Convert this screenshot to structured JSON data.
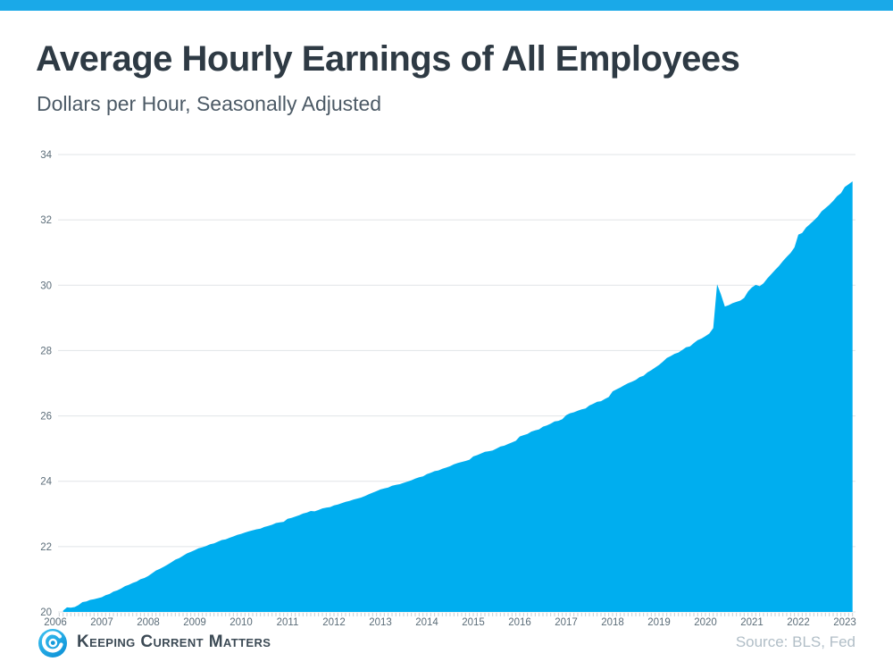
{
  "topbar": {
    "color": "#1aa9e8"
  },
  "header": {
    "title": "Average Hourly Earnings of All Employees",
    "subtitle": "Dollars per Hour, Seasonally Adjusted"
  },
  "chart_data": {
    "type": "area",
    "title": "Average Hourly Earnings of All Employees",
    "subtitle": "Dollars per Hour, Seasonally Adjusted",
    "unit": "dollars per hour",
    "frequency": "monthly",
    "start": "2006-03",
    "end": "2023-03",
    "ylim": [
      20,
      34
    ],
    "yticks": [
      20,
      22,
      24,
      26,
      28,
      30,
      32,
      34
    ],
    "xticks": [
      2006,
      2007,
      2008,
      2009,
      2010,
      2011,
      2012,
      2013,
      2014,
      2015,
      2016,
      2017,
      2018,
      2019,
      2020,
      2021,
      2022,
      2023
    ],
    "grid": "horizontal",
    "legend": "none",
    "fill_color": "#00aeef",
    "values": [
      20.04,
      20.14,
      20.13,
      20.15,
      20.21,
      20.3,
      20.32,
      20.37,
      20.39,
      20.42,
      20.45,
      20.51,
      20.55,
      20.62,
      20.66,
      20.72,
      20.79,
      20.83,
      20.89,
      20.93,
      21.0,
      21.04,
      21.1,
      21.18,
      21.27,
      21.32,
      21.38,
      21.45,
      21.52,
      21.6,
      21.65,
      21.72,
      21.79,
      21.84,
      21.89,
      21.95,
      21.98,
      22.02,
      22.07,
      22.1,
      22.15,
      22.2,
      22.22,
      22.27,
      22.31,
      22.36,
      22.39,
      22.43,
      22.47,
      22.5,
      22.53,
      22.55,
      22.6,
      22.63,
      22.67,
      22.72,
      22.74,
      22.76,
      22.85,
      22.88,
      22.92,
      22.96,
      23.01,
      23.04,
      23.09,
      23.08,
      23.12,
      23.17,
      23.19,
      23.21,
      23.26,
      23.29,
      23.33,
      23.37,
      23.4,
      23.44,
      23.47,
      23.5,
      23.55,
      23.6,
      23.65,
      23.7,
      23.75,
      23.78,
      23.81,
      23.86,
      23.89,
      23.91,
      23.95,
      23.99,
      24.03,
      24.08,
      24.12,
      24.15,
      24.22,
      24.26,
      24.31,
      24.33,
      24.38,
      24.42,
      24.46,
      24.52,
      24.56,
      24.59,
      24.62,
      24.66,
      24.76,
      24.8,
      24.85,
      24.9,
      24.92,
      24.94,
      25.0,
      25.06,
      25.09,
      25.14,
      25.19,
      25.24,
      25.37,
      25.41,
      25.45,
      25.52,
      25.56,
      25.59,
      25.67,
      25.71,
      25.76,
      25.83,
      25.85,
      25.9,
      26.02,
      26.08,
      26.11,
      26.16,
      26.2,
      26.23,
      26.32,
      26.37,
      26.43,
      26.45,
      26.52,
      26.58,
      26.75,
      26.81,
      26.87,
      26.94,
      27.0,
      27.05,
      27.1,
      27.19,
      27.23,
      27.33,
      27.4,
      27.48,
      27.56,
      27.66,
      27.77,
      27.83,
      27.9,
      27.94,
      28.02,
      28.1,
      28.13,
      28.23,
      28.32,
      28.37,
      28.44,
      28.52,
      28.69,
      30.03,
      29.72,
      29.35,
      29.39,
      29.45,
      29.49,
      29.53,
      29.61,
      29.81,
      29.93,
      30.01,
      29.97,
      30.06,
      30.21,
      30.34,
      30.47,
      30.59,
      30.74,
      30.87,
      30.99,
      31.16,
      31.55,
      31.6,
      31.77,
      31.87,
      31.98,
      32.1,
      32.26,
      32.36,
      32.46,
      32.58,
      32.72,
      32.82,
      33.01,
      33.09,
      33.18
    ]
  },
  "footer": {
    "logo_icon": "kcm-swirl-icon",
    "brand": "Keeping Current Matters",
    "source": "Source: BLS, Fed"
  }
}
